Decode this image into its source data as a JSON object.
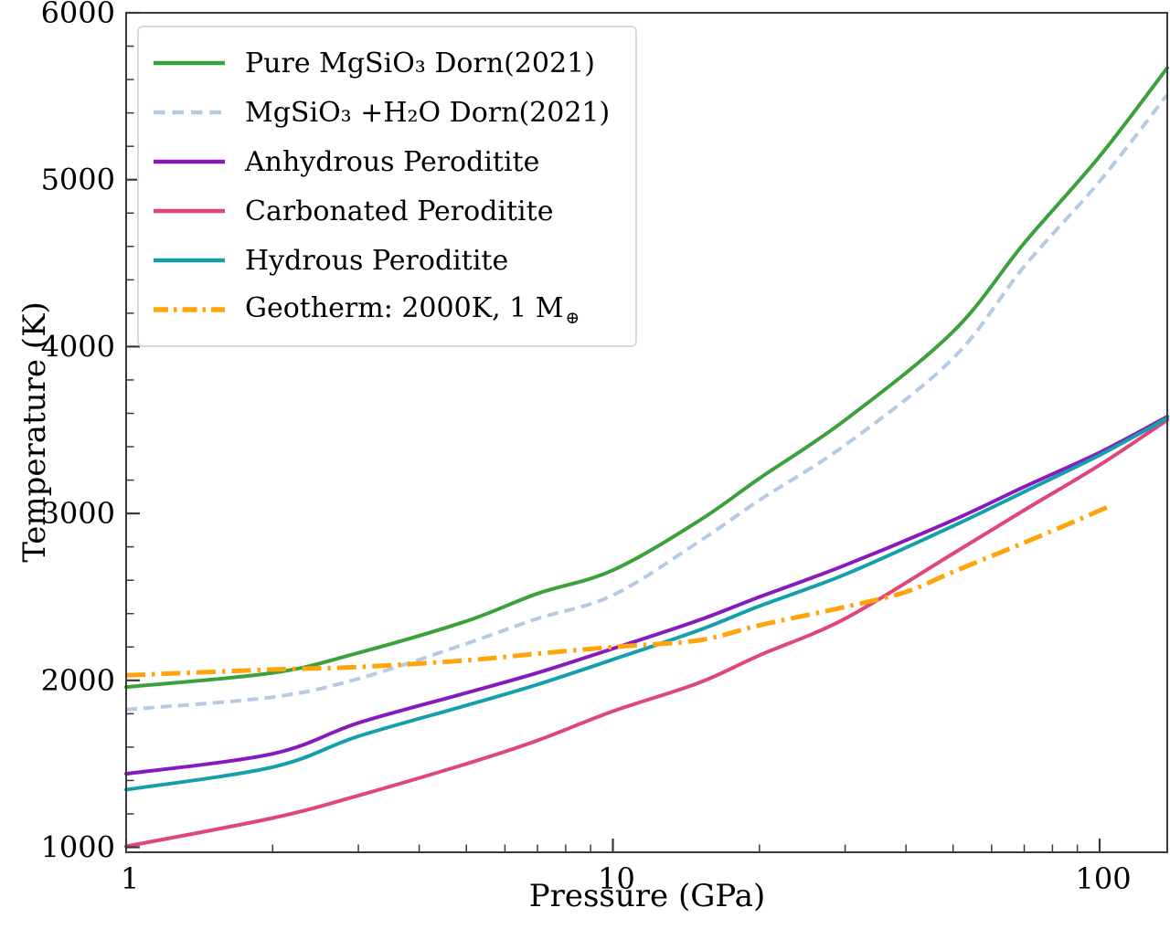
{
  "chart_data": {
    "type": "line",
    "title": "",
    "xlabel": "Pressure (GPa)",
    "ylabel": "Temperature (K)",
    "x_scale": "log",
    "xlim": [
      1,
      137.7
    ],
    "ylim": [
      970,
      6000
    ],
    "x_ticks": [
      1,
      10,
      100
    ],
    "x_tick_labels": [
      "1",
      "10",
      "100"
    ],
    "x_minor_ticks": [
      2,
      3,
      4,
      5,
      6,
      7,
      8,
      9,
      20,
      30,
      40,
      50,
      60,
      70,
      80,
      90
    ],
    "y_ticks": [
      1000,
      2000,
      3000,
      4000,
      5000,
      6000
    ],
    "y_tick_labels": [
      "1000",
      "2000",
      "3000",
      "4000",
      "5000",
      "6000"
    ],
    "y_minor_step": 200,
    "grid": false,
    "legend_position": "upper-left",
    "axis_color": "#3a3a3a",
    "series": [
      {
        "key": "pure-mgsio3",
        "name": "Pure MgSiO₃ Dorn(2021)",
        "color": "#3ba13b",
        "style": "solid",
        "points": [
          [
            1,
            1960
          ],
          [
            2,
            2045
          ],
          [
            3,
            2165
          ],
          [
            5,
            2355
          ],
          [
            7,
            2520
          ],
          [
            10,
            2660
          ],
          [
            15,
            2955
          ],
          [
            20,
            3210
          ],
          [
            30,
            3560
          ],
          [
            50,
            4090
          ],
          [
            70,
            4620
          ],
          [
            100,
            5140
          ],
          [
            137.7,
            5670
          ]
        ]
      },
      {
        "key": "mgsio3-h2o",
        "name": "MgSiO₃ +H₂O Dorn(2021)",
        "color": "#b6cbe3",
        "style": "dashed",
        "points": [
          [
            1,
            1825
          ],
          [
            2,
            1900
          ],
          [
            3,
            2010
          ],
          [
            5,
            2220
          ],
          [
            7,
            2370
          ],
          [
            10,
            2510
          ],
          [
            15,
            2830
          ],
          [
            20,
            3080
          ],
          [
            30,
            3410
          ],
          [
            50,
            3930
          ],
          [
            70,
            4480
          ],
          [
            100,
            4990
          ],
          [
            137.7,
            5510
          ]
        ]
      },
      {
        "key": "anhydrous-peroditite",
        "name": "Anhydrous Peroditite",
        "color": "#871abe",
        "style": "solid",
        "points": [
          [
            1,
            1440
          ],
          [
            2,
            1560
          ],
          [
            3,
            1745
          ],
          [
            5,
            1925
          ],
          [
            7,
            2045
          ],
          [
            10,
            2190
          ],
          [
            15,
            2360
          ],
          [
            20,
            2500
          ],
          [
            30,
            2690
          ],
          [
            50,
            2960
          ],
          [
            70,
            3160
          ],
          [
            100,
            3365
          ],
          [
            137.7,
            3580
          ]
        ]
      },
      {
        "key": "carbonated-peroditite",
        "name": "Carbonated Peroditite",
        "color": "#e0467d",
        "style": "solid",
        "points": [
          [
            1,
            1005
          ],
          [
            2,
            1175
          ],
          [
            3,
            1310
          ],
          [
            5,
            1500
          ],
          [
            7,
            1640
          ],
          [
            10,
            1815
          ],
          [
            15,
            1985
          ],
          [
            20,
            2150
          ],
          [
            30,
            2370
          ],
          [
            50,
            2760
          ],
          [
            70,
            3020
          ],
          [
            100,
            3290
          ],
          [
            137.7,
            3560
          ]
        ]
      },
      {
        "key": "hydrous-peroditite",
        "name": "Hydrous Peroditite",
        "color": "#14a0aa",
        "style": "solid",
        "points": [
          [
            1,
            1345
          ],
          [
            2,
            1480
          ],
          [
            3,
            1665
          ],
          [
            5,
            1850
          ],
          [
            7,
            1975
          ],
          [
            10,
            2125
          ],
          [
            15,
            2300
          ],
          [
            20,
            2445
          ],
          [
            30,
            2635
          ],
          [
            50,
            2925
          ],
          [
            70,
            3130
          ],
          [
            100,
            3350
          ],
          [
            137.7,
            3572
          ]
        ]
      },
      {
        "key": "geotherm",
        "name": "Geotherm: 2000K, 1 M⊕",
        "color": "#ffa50a",
        "style": "dashdot",
        "points": [
          [
            1,
            2030
          ],
          [
            2,
            2065
          ],
          [
            3,
            2080
          ],
          [
            5,
            2120
          ],
          [
            7,
            2160
          ],
          [
            10,
            2200
          ],
          [
            15,
            2240
          ],
          [
            20,
            2330
          ],
          [
            30,
            2440
          ],
          [
            40,
            2530
          ],
          [
            50,
            2650
          ],
          [
            70,
            2825
          ],
          [
            90,
            2960
          ],
          [
            106,
            3050
          ]
        ]
      }
    ]
  }
}
